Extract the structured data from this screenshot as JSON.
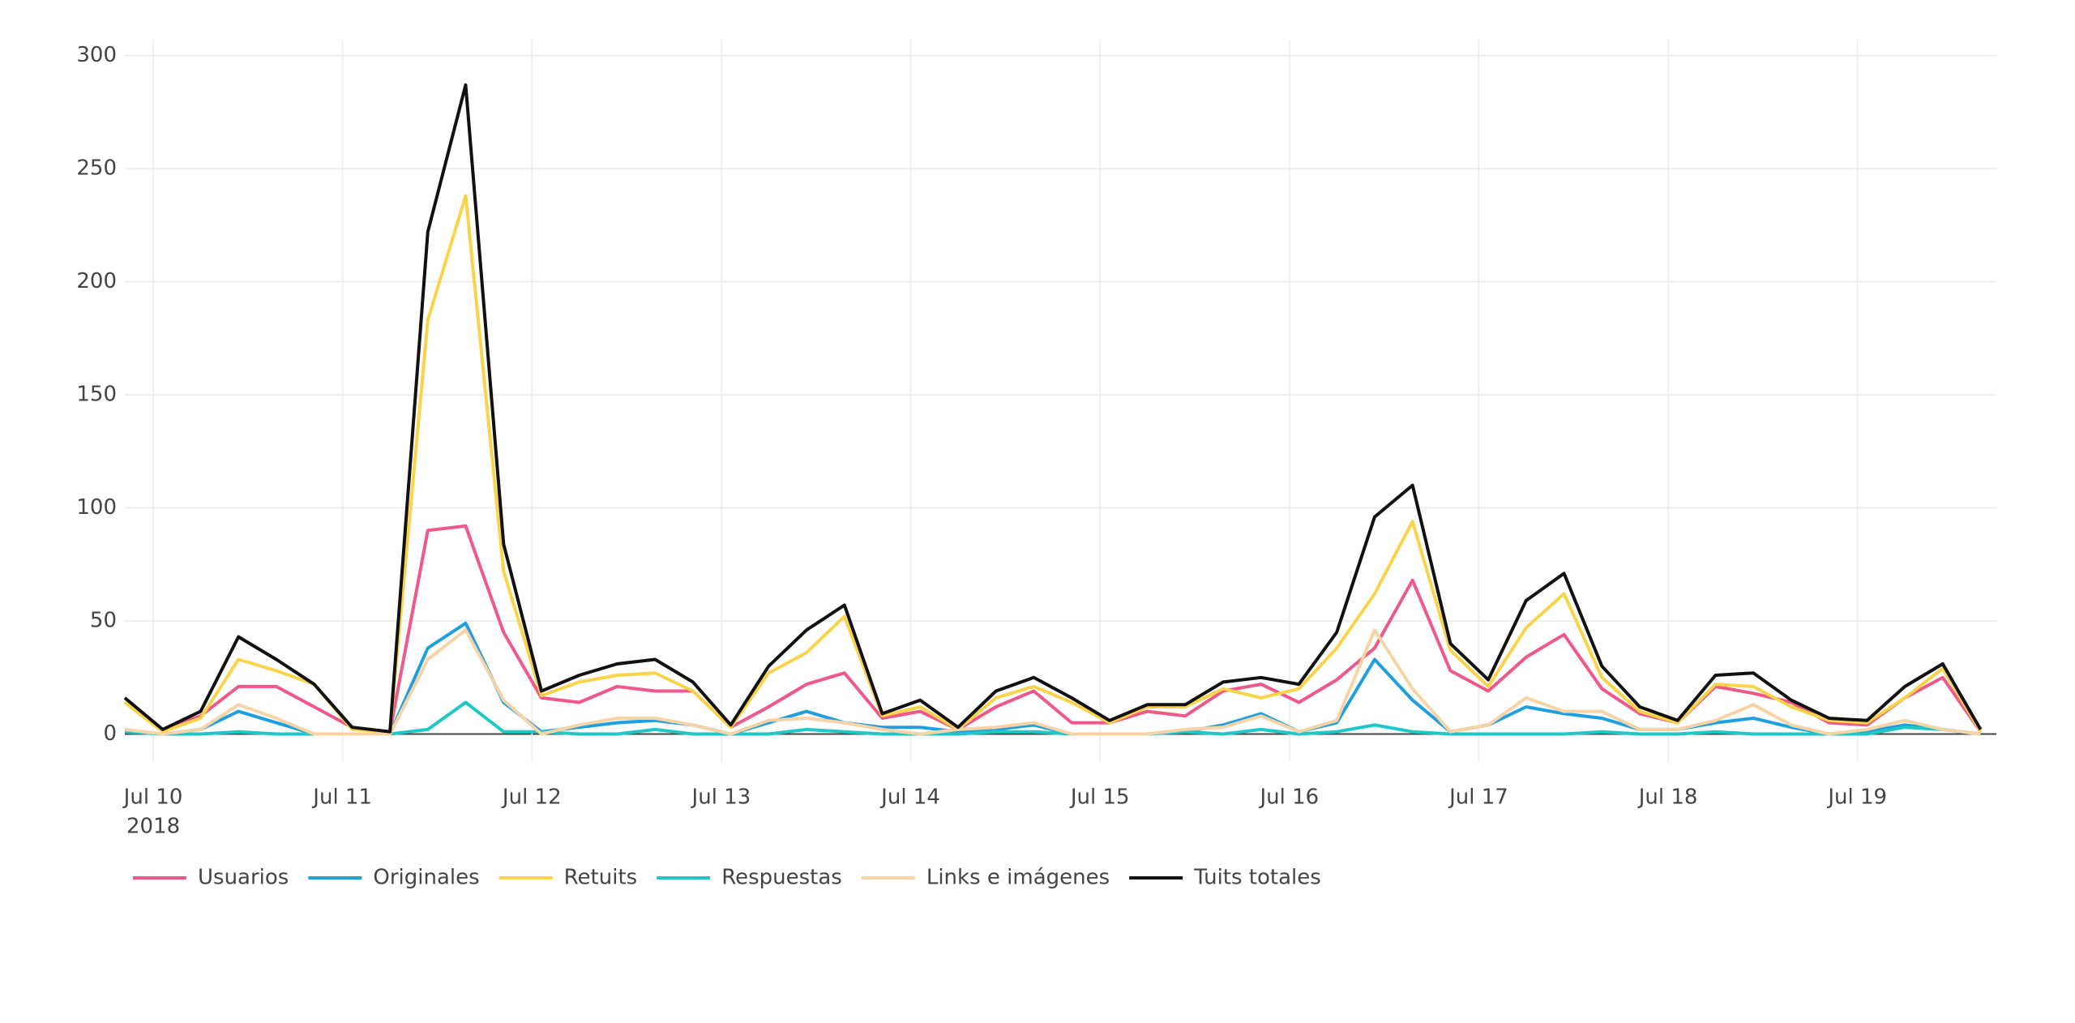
{
  "chart_data": {
    "type": "line",
    "x": [
      "2018-07-09T20:24",
      "2018-07-10T01:12",
      "2018-07-10T06:00",
      "2018-07-10T10:48",
      "2018-07-10T15:36",
      "2018-07-10T20:24",
      "2018-07-11T01:12",
      "2018-07-11T06:00",
      "2018-07-11T10:48",
      "2018-07-11T15:36",
      "2018-07-11T20:24",
      "2018-07-12T01:12",
      "2018-07-12T06:00",
      "2018-07-12T10:48",
      "2018-07-12T15:36",
      "2018-07-12T20:24",
      "2018-07-13T01:12",
      "2018-07-13T06:00",
      "2018-07-13T10:48",
      "2018-07-13T15:36",
      "2018-07-13T20:24",
      "2018-07-14T01:12",
      "2018-07-14T06:00",
      "2018-07-14T10:48",
      "2018-07-14T15:36",
      "2018-07-14T20:24",
      "2018-07-15T01:12",
      "2018-07-15T06:00",
      "2018-07-15T10:48",
      "2018-07-15T15:36",
      "2018-07-15T20:24",
      "2018-07-16T01:12",
      "2018-07-16T06:00",
      "2018-07-16T10:48",
      "2018-07-16T15:36",
      "2018-07-16T20:24",
      "2018-07-17T01:12",
      "2018-07-17T06:00",
      "2018-07-17T10:48",
      "2018-07-17T15:36",
      "2018-07-17T20:24",
      "2018-07-18T01:12",
      "2018-07-18T06:00",
      "2018-07-18T10:48",
      "2018-07-18T15:36",
      "2018-07-18T20:24",
      "2018-07-19T01:12",
      "2018-07-19T06:00",
      "2018-07-19T10:48",
      "2018-07-19T15:36"
    ],
    "series": [
      {
        "name": "Usuarios",
        "color": "#f0578a",
        "values": [
          14,
          2,
          8,
          21,
          21,
          12,
          3,
          1,
          90,
          92,
          45,
          16,
          14,
          21,
          19,
          19,
          3,
          12,
          22,
          27,
          7,
          10,
          2,
          12,
          19,
          5,
          5,
          10,
          8,
          19,
          22,
          14,
          24,
          38,
          68,
          28,
          19,
          34,
          44,
          20,
          9,
          5,
          21,
          18,
          14,
          5,
          4,
          16,
          25,
          1
        ]
      },
      {
        "name": "Originales",
        "color": "#1f9fe0",
        "values": [
          1,
          0,
          2,
          10,
          5,
          0,
          0,
          0,
          38,
          49,
          14,
          1,
          3,
          5,
          6,
          4,
          0,
          5,
          10,
          5,
          3,
          3,
          1,
          2,
          4,
          0,
          0,
          0,
          1,
          4,
          9,
          1,
          5,
          33,
          15,
          1,
          4,
          12,
          9,
          7,
          2,
          2,
          5,
          7,
          3,
          0,
          1,
          4,
          2,
          0
        ]
      },
      {
        "name": "Retuits",
        "color": "#f9d44a",
        "values": [
          14,
          1,
          7,
          33,
          28,
          22,
          2,
          1,
          183,
          238,
          72,
          17,
          23,
          26,
          27,
          19,
          3,
          27,
          36,
          52,
          8,
          12,
          2,
          16,
          21,
          14,
          5,
          12,
          12,
          20,
          16,
          20,
          38,
          62,
          94,
          37,
          21,
          47,
          62,
          25,
          10,
          5,
          22,
          21,
          12,
          6,
          5,
          16,
          29,
          1
        ]
      },
      {
        "name": "Respuestas",
        "color": "#1fc7c7",
        "values": [
          1,
          0,
          0,
          1,
          0,
          0,
          0,
          0,
          2,
          14,
          1,
          1,
          0,
          0,
          2,
          0,
          0,
          0,
          2,
          1,
          0,
          0,
          0,
          1,
          1,
          0,
          0,
          0,
          1,
          0,
          2,
          0,
          1,
          4,
          1,
          0,
          0,
          0,
          0,
          1,
          0,
          0,
          1,
          0,
          0,
          0,
          0,
          3,
          2,
          0
        ]
      },
      {
        "name": "Links e imágenes",
        "color": "#f7d3a5",
        "values": [
          2,
          0,
          2,
          13,
          7,
          0,
          0,
          0,
          33,
          46,
          15,
          0,
          4,
          7,
          7,
          4,
          0,
          6,
          7,
          5,
          2,
          0,
          2,
          3,
          5,
          0,
          0,
          0,
          2,
          3,
          8,
          1,
          6,
          46,
          20,
          1,
          4,
          16,
          10,
          10,
          2,
          2,
          6,
          13,
          4,
          0,
          2,
          6,
          2,
          0
        ]
      },
      {
        "name": "Tuits totales",
        "color": "#111111",
        "values": [
          16,
          2,
          10,
          43,
          33,
          22,
          3,
          1,
          222,
          287,
          84,
          19,
          26,
          31,
          33,
          23,
          4,
          30,
          46,
          57,
          9,
          15,
          3,
          19,
          25,
          16,
          6,
          13,
          13,
          23,
          25,
          22,
          45,
          96,
          110,
          40,
          24,
          59,
          71,
          30,
          12,
          6,
          26,
          27,
          15,
          7,
          6,
          21,
          31,
          2
        ]
      }
    ],
    "xlim": [
      "2018-07-09T20:24",
      "2018-07-19T17:36"
    ],
    "xticks": [
      {
        "value": "2018-07-10",
        "label": "Jul 10"
      },
      {
        "value": "2018-07-11",
        "label": "Jul 11"
      },
      {
        "value": "2018-07-12",
        "label": "Jul 12"
      },
      {
        "value": "2018-07-13",
        "label": "Jul 13"
      },
      {
        "value": "2018-07-14",
        "label": "Jul 14"
      },
      {
        "value": "2018-07-15",
        "label": "Jul 15"
      },
      {
        "value": "2018-07-16",
        "label": "Jul 16"
      },
      {
        "value": "2018-07-17",
        "label": "Jul 17"
      },
      {
        "value": "2018-07-18",
        "label": "Jul 18"
      },
      {
        "value": "2018-07-19",
        "label": "Jul 19"
      }
    ],
    "x_year_label": "2018",
    "ylim": [
      -12,
      307
    ],
    "yticks": [
      0,
      50,
      100,
      150,
      200,
      250,
      300
    ],
    "grid": true,
    "legend": "bottom"
  }
}
